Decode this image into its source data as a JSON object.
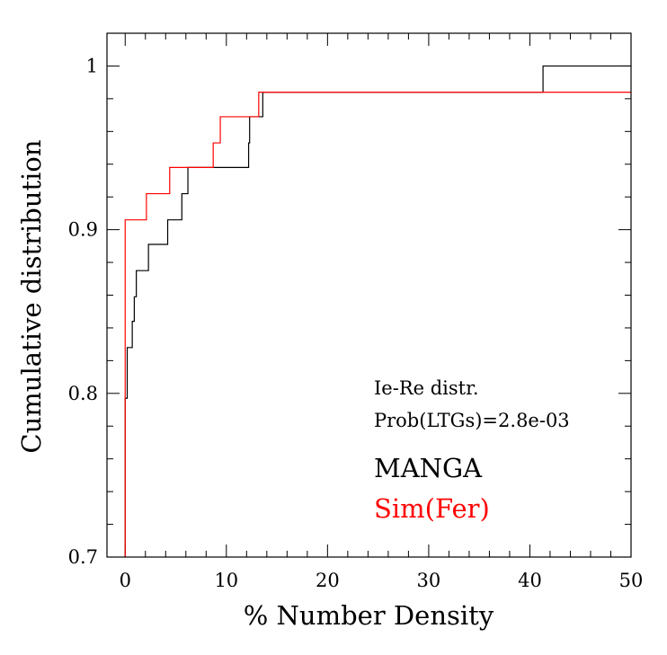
{
  "chart_data": {
    "type": "line",
    "xlabel": "% Number Density",
    "ylabel": "Cumulative distribution",
    "xlim": [
      -1.8,
      50
    ],
    "ylim": [
      0.7,
      1.02
    ],
    "x_ticks": [
      0,
      10,
      20,
      30,
      40,
      50
    ],
    "x_tick_labels": [
      "0",
      "10",
      "20",
      "30",
      "40",
      "50"
    ],
    "y_ticks": [
      0.7,
      0.8,
      0.9,
      1.0
    ],
    "y_tick_labels": [
      "0.7",
      "0.8",
      "0.9",
      "1"
    ],
    "annotations": [
      "Ie-Re distr.",
      "Prob(LTGs)=2.8e-03"
    ],
    "legend_placement": "bottom-right inside plot",
    "series": [
      {
        "name": "MANGA",
        "color": "#000000",
        "steps": [
          [
            0.0,
            0.797
          ],
          [
            0.2,
            0.828
          ],
          [
            0.7,
            0.844
          ],
          [
            0.9,
            0.859
          ],
          [
            1.1,
            0.875
          ],
          [
            2.3,
            0.891
          ],
          [
            4.2,
            0.906
          ],
          [
            5.6,
            0.922
          ],
          [
            6.2,
            0.938
          ],
          [
            12.2,
            0.953
          ],
          [
            12.3,
            0.969
          ],
          [
            13.6,
            0.984
          ],
          [
            41.3,
            1.0
          ],
          [
            50.0,
            1.0
          ]
        ]
      },
      {
        "name": "Sim(Fer)",
        "color": "#ff0000",
        "steps": [
          [
            0.0,
            0.906
          ],
          [
            2.1,
            0.922
          ],
          [
            4.4,
            0.938
          ],
          [
            8.7,
            0.953
          ],
          [
            9.4,
            0.969
          ],
          [
            13.2,
            0.984
          ],
          [
            50.0,
            0.984
          ]
        ]
      }
    ]
  }
}
